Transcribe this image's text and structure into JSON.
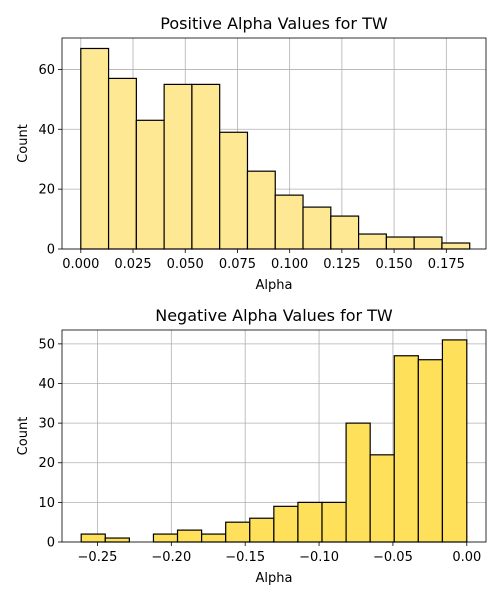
{
  "chart_data": [
    {
      "type": "bar",
      "title": "Positive Alpha Values for TW",
      "xlabel": "Alpha",
      "ylabel": "Count",
      "color": "#fee893",
      "edgecolor": "#000000",
      "grid": true,
      "xlim": [
        -0.009,
        0.194
      ],
      "ylim": [
        0,
        70.5
      ],
      "xticks": [
        0.0,
        0.025,
        0.05,
        0.075,
        0.1,
        0.125,
        0.15,
        0.175
      ],
      "xtick_labels": [
        "0.000",
        "0.025",
        "0.050",
        "0.075",
        "0.100",
        "0.125",
        "0.150",
        "0.175"
      ],
      "yticks": [
        0,
        20,
        40,
        60
      ],
      "ytick_labels": [
        "0",
        "20",
        "40",
        "60"
      ],
      "bin_edges": [
        0.0,
        0.0133,
        0.0266,
        0.0399,
        0.0532,
        0.0665,
        0.0798,
        0.0931,
        0.1064,
        0.1197,
        0.133,
        0.1463,
        0.1596,
        0.1729,
        0.1862
      ],
      "values": [
        67,
        57,
        43,
        55,
        55,
        39,
        26,
        18,
        14,
        11,
        5,
        4,
        4,
        2
      ]
    },
    {
      "type": "bar",
      "title": "Negative Alpha Values for TW",
      "xlabel": "Alpha",
      "ylabel": "Count",
      "color": "#fee05b",
      "edgecolor": "#000000",
      "grid": true,
      "xlim": [
        -0.274,
        0.013
      ],
      "ylim": [
        0,
        53.5
      ],
      "xticks": [
        -0.25,
        -0.2,
        -0.15,
        -0.1,
        -0.05,
        0.0
      ],
      "xtick_labels": [
        "−0.25",
        "−0.20",
        "−0.15",
        "−0.10",
        "−0.05",
        "0.00"
      ],
      "yticks": [
        0,
        10,
        20,
        30,
        40,
        50
      ],
      "ytick_labels": [
        "0",
        "10",
        "20",
        "30",
        "40",
        "50"
      ],
      "bin_edges": [
        -0.261,
        -0.2447,
        -0.2284,
        -0.2121,
        -0.1958,
        -0.1795,
        -0.1632,
        -0.1469,
        -0.1306,
        -0.1143,
        -0.098,
        -0.0817,
        -0.0654,
        -0.0491,
        -0.0328,
        -0.0165,
        0.0
      ],
      "values": [
        2,
        1,
        0,
        2,
        3,
        2,
        5,
        6,
        9,
        10,
        10,
        30,
        22,
        47,
        46,
        51
      ]
    }
  ]
}
